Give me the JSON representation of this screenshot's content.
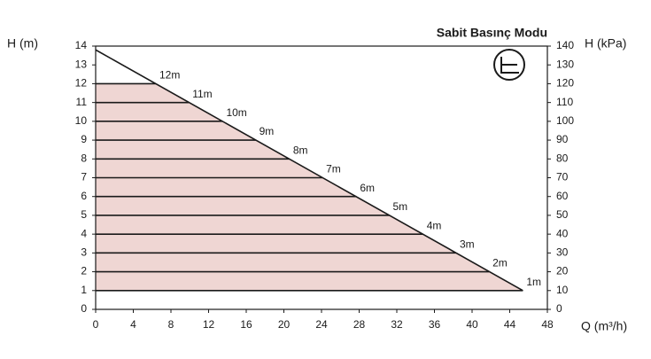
{
  "chart_data": {
    "type": "line",
    "title": "Sabit Basınç Modu",
    "y_label": "H (m)",
    "y2_label": "H (kPa)",
    "x_label": "Q (m³/h)",
    "xlim": [
      0,
      48
    ],
    "xticks": [
      0,
      4,
      8,
      12,
      16,
      20,
      24,
      28,
      32,
      36,
      40,
      44,
      48
    ],
    "ylim": [
      0,
      14
    ],
    "yticks": [
      0,
      1,
      2,
      3,
      4,
      5,
      6,
      7,
      8,
      9,
      10,
      11,
      12,
      13,
      14
    ],
    "y2lim": [
      0,
      140
    ],
    "y2ticks": [
      0,
      10,
      20,
      30,
      40,
      50,
      60,
      70,
      80,
      90,
      100,
      110,
      120,
      130,
      140
    ],
    "curve": {
      "x": [
        0,
        45.4
      ],
      "values": [
        13.8,
        1
      ],
      "color": "#1a1a1a"
    },
    "levels": {
      "values": [
        1,
        2,
        3,
        4,
        5,
        6,
        7,
        8,
        9,
        10,
        11,
        12
      ],
      "x_end": [
        45.4,
        41.8,
        38.3,
        34.8,
        31.2,
        27.7,
        24.1,
        20.6,
        17.0,
        13.5,
        9.9,
        6.4
      ],
      "labels": [
        "1m",
        "2m",
        "3m",
        "4m",
        "5m",
        "6m",
        "7m",
        "8m",
        "9m",
        "10m",
        "11m",
        "12m"
      ],
      "color": "#1a1a1a"
    },
    "fill_color": "#efd6d3"
  }
}
